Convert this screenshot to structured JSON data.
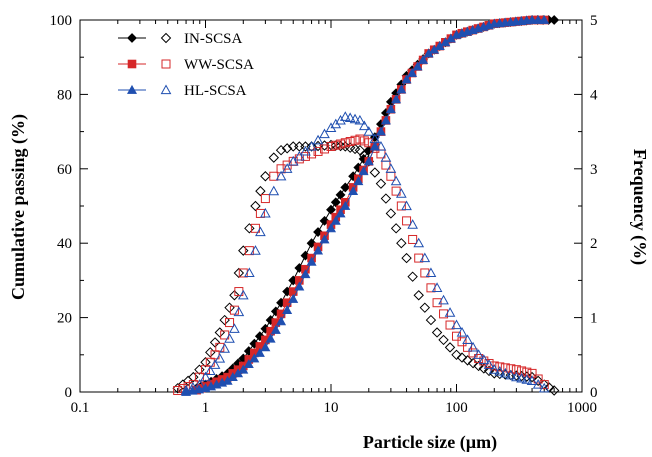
{
  "chart_data": {
    "type": "scatter",
    "xlabel": "Particle size (µm)",
    "ylabel_left": "Cumulative passing (%)",
    "ylabel_right": "Frequency (%)",
    "x_scale": "log",
    "xlim": [
      0.1,
      1000
    ],
    "ylim_left": [
      0,
      100
    ],
    "ylim_right": [
      0,
      5
    ],
    "x_ticks": [
      "0.1",
      "1",
      "10",
      "100",
      "1000"
    ],
    "y_ticks_left": [
      "0",
      "20",
      "40",
      "60",
      "80",
      "100"
    ],
    "y_ticks_right": [
      "0",
      "1",
      "2",
      "3",
      "4",
      "5"
    ],
    "grid": false,
    "legend_position": "top-left",
    "series": [
      {
        "name": "IN-SCSA",
        "color": "#000000",
        "cumulative_marker": "filled-diamond",
        "frequency_marker": "open-diamond",
        "cumulative": [
          [
            0.85,
            1
          ],
          [
            1,
            2
          ],
          [
            1.5,
            5
          ],
          [
            2,
            9
          ],
          [
            3,
            17
          ],
          [
            4,
            24
          ],
          [
            5,
            30
          ],
          [
            7,
            40
          ],
          [
            10,
            49
          ],
          [
            13,
            55
          ],
          [
            15,
            58
          ],
          [
            20,
            65
          ],
          [
            25,
            72
          ],
          [
            30,
            78
          ],
          [
            40,
            85
          ],
          [
            60,
            91
          ],
          [
            100,
            96
          ],
          [
            200,
            99
          ],
          [
            400,
            100
          ],
          [
            600,
            100
          ]
        ],
        "frequency": [
          [
            0.6,
            0.05
          ],
          [
            0.8,
            0.2
          ],
          [
            1,
            0.4
          ],
          [
            1.3,
            0.8
          ],
          [
            1.7,
            1.3
          ],
          [
            2,
            1.9
          ],
          [
            2.5,
            2.5
          ],
          [
            3,
            2.9
          ],
          [
            3.5,
            3.15
          ],
          [
            4,
            3.25
          ],
          [
            5,
            3.3
          ],
          [
            7,
            3.3
          ],
          [
            10,
            3.32
          ],
          [
            13,
            3.3
          ],
          [
            17,
            3.25
          ],
          [
            20,
            3.1
          ],
          [
            25,
            2.8
          ],
          [
            30,
            2.4
          ],
          [
            40,
            1.8
          ],
          [
            50,
            1.3
          ],
          [
            70,
            0.8
          ],
          [
            100,
            0.5
          ],
          [
            150,
            0.35
          ],
          [
            200,
            0.25
          ],
          [
            300,
            0.22
          ],
          [
            400,
            0.2
          ],
          [
            500,
            0.1
          ],
          [
            600,
            0.02
          ]
        ]
      },
      {
        "name": "WW-SCSA",
        "color": "#d62728",
        "cumulative_marker": "filled-square",
        "frequency_marker": "open-square",
        "cumulative": [
          [
            0.85,
            0.5
          ],
          [
            1,
            1.5
          ],
          [
            1.5,
            4
          ],
          [
            2,
            7
          ],
          [
            3,
            14
          ],
          [
            4,
            21
          ],
          [
            5,
            27
          ],
          [
            7,
            36
          ],
          [
            10,
            45
          ],
          [
            13,
            51
          ],
          [
            15,
            55
          ],
          [
            20,
            62
          ],
          [
            25,
            70
          ],
          [
            30,
            76
          ],
          [
            40,
            84
          ],
          [
            60,
            91
          ],
          [
            100,
            96
          ],
          [
            200,
            99
          ],
          [
            400,
            100
          ],
          [
            500,
            100
          ]
        ],
        "frequency": [
          [
            0.6,
            0.02
          ],
          [
            0.8,
            0.1
          ],
          [
            1,
            0.3
          ],
          [
            1.3,
            0.6
          ],
          [
            1.7,
            1.1
          ],
          [
            2,
            1.6
          ],
          [
            2.5,
            2.2
          ],
          [
            3,
            2.6
          ],
          [
            3.5,
            2.9
          ],
          [
            4,
            3.0
          ],
          [
            5,
            3.1
          ],
          [
            7,
            3.2
          ],
          [
            10,
            3.3
          ],
          [
            13,
            3.35
          ],
          [
            17,
            3.4
          ],
          [
            20,
            3.35
          ],
          [
            25,
            3.2
          ],
          [
            30,
            2.9
          ],
          [
            40,
            2.3
          ],
          [
            50,
            1.8
          ],
          [
            70,
            1.2
          ],
          [
            100,
            0.75
          ],
          [
            150,
            0.45
          ],
          [
            200,
            0.35
          ],
          [
            300,
            0.3
          ],
          [
            400,
            0.25
          ],
          [
            500,
            0.1
          ]
        ]
      },
      {
        "name": "HL-SCSA",
        "color": "#1f4fb0",
        "cumulative_marker": "filled-triangle",
        "frequency_marker": "open-triangle",
        "cumulative": [
          [
            0.7,
            0
          ],
          [
            1,
            1
          ],
          [
            1.5,
            3
          ],
          [
            2,
            6
          ],
          [
            3,
            12
          ],
          [
            4,
            19
          ],
          [
            5,
            25
          ],
          [
            7,
            35
          ],
          [
            10,
            44
          ],
          [
            13,
            50
          ],
          [
            15,
            54
          ],
          [
            20,
            62
          ],
          [
            25,
            70
          ],
          [
            30,
            76
          ],
          [
            40,
            84
          ],
          [
            60,
            91
          ],
          [
            100,
            96
          ],
          [
            200,
            99
          ],
          [
            400,
            100
          ],
          [
            500,
            100
          ]
        ],
        "frequency": [
          [
            0.7,
            0.02
          ],
          [
            0.9,
            0.1
          ],
          [
            1,
            0.2
          ],
          [
            1.3,
            0.45
          ],
          [
            1.7,
            0.85
          ],
          [
            2,
            1.3
          ],
          [
            2.5,
            1.9
          ],
          [
            3,
            2.4
          ],
          [
            3.5,
            2.7
          ],
          [
            4,
            2.9
          ],
          [
            5,
            3.1
          ],
          [
            7,
            3.3
          ],
          [
            10,
            3.55
          ],
          [
            13,
            3.7
          ],
          [
            17,
            3.65
          ],
          [
            20,
            3.5
          ],
          [
            25,
            3.3
          ],
          [
            30,
            3.0
          ],
          [
            40,
            2.5
          ],
          [
            50,
            2.0
          ],
          [
            70,
            1.4
          ],
          [
            100,
            0.9
          ],
          [
            150,
            0.5
          ],
          [
            200,
            0.3
          ],
          [
            300,
            0.2
          ],
          [
            400,
            0.15
          ],
          [
            500,
            0.05
          ]
        ]
      }
    ]
  }
}
